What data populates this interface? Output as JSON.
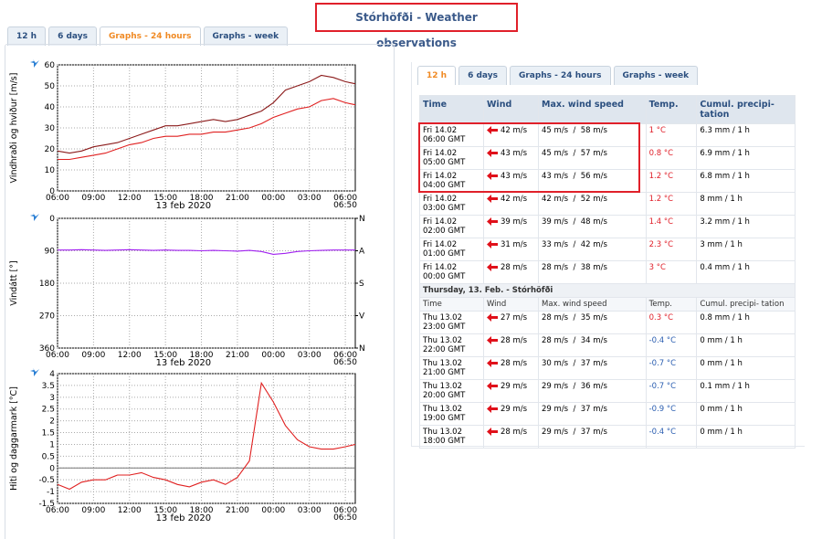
{
  "title": "Stórhöfði - Weather observations",
  "tabs": [
    {
      "label": "12 h"
    },
    {
      "label": "6 days"
    },
    {
      "label": "Graphs - 24 hours",
      "active": true
    },
    {
      "label": "Graphs - week"
    }
  ],
  "charts": [
    {
      "ylabel": "Vindhraði og hviður [m/s]",
      "xlim": [
        0,
        24.83
      ],
      "xticks": [
        {
          "value": 0,
          "label": "06:00"
        },
        {
          "value": 3,
          "label": "09:00"
        },
        {
          "value": 6,
          "label": "12:00"
        },
        {
          "value": 9,
          "label": "15:00"
        },
        {
          "value": 12,
          "label": "18:00"
        },
        {
          "value": 15,
          "label": "21:00"
        },
        {
          "value": 18,
          "label": "00:00"
        },
        {
          "value": 21,
          "label": "03:00"
        },
        {
          "value": 24,
          "label": "06:00"
        }
      ],
      "x_end_label": "06:50",
      "date_label": "13 feb 2020",
      "ylim": [
        0,
        60
      ],
      "yticks": [
        0,
        10,
        20,
        30,
        40,
        50,
        60
      ],
      "x": [
        0,
        1,
        2,
        3,
        4,
        5,
        6,
        7,
        8,
        9,
        10,
        11,
        12,
        13,
        14,
        15,
        16,
        17,
        18,
        19,
        20,
        21,
        22,
        23,
        24,
        24.83
      ],
      "series": [
        {
          "color": "#8b1a1a",
          "values": [
            19,
            18,
            19,
            21,
            22,
            23,
            25,
            27,
            29,
            31,
            31,
            32,
            33,
            34,
            33,
            34,
            36,
            38,
            42,
            48,
            50,
            52,
            55,
            54,
            52,
            51
          ]
        },
        {
          "color": "#e02020",
          "values": [
            15,
            15,
            16,
            17,
            18,
            20,
            22,
            23,
            25,
            26,
            26,
            27,
            27,
            28,
            28,
            29,
            30,
            32,
            35,
            37,
            39,
            40,
            43,
            44,
            42,
            41
          ]
        }
      ]
    },
    {
      "ylabel": "Vindátt [°]",
      "xlim": [
        0,
        24.83
      ],
      "xticks": [
        {
          "value": 0,
          "label": "06:00"
        },
        {
          "value": 3,
          "label": "09:00"
        },
        {
          "value": 6,
          "label": "12:00"
        },
        {
          "value": 9,
          "label": "15:00"
        },
        {
          "value": 12,
          "label": "18:00"
        },
        {
          "value": 15,
          "label": "21:00"
        },
        {
          "value": 18,
          "label": "00:00"
        },
        {
          "value": 21,
          "label": "03:00"
        },
        {
          "value": 24,
          "label": "06:00"
        }
      ],
      "x_end_label": "06:50",
      "date_label": "13 feb 2020",
      "ylim": [
        0,
        360
      ],
      "inverted": true,
      "yticks": [
        0,
        90,
        180,
        270,
        360
      ],
      "y2ticks": [
        {
          "value": 0,
          "label": "N"
        },
        {
          "value": 90,
          "label": "A"
        },
        {
          "value": 180,
          "label": "S"
        },
        {
          "value": 270,
          "label": "V"
        },
        {
          "value": 360,
          "label": "N"
        }
      ],
      "x": [
        0,
        1,
        2,
        3,
        4,
        5,
        6,
        7,
        8,
        9,
        10,
        11,
        12,
        13,
        14,
        15,
        16,
        17,
        18,
        19,
        20,
        21,
        22,
        23,
        24,
        24.83
      ],
      "series": [
        {
          "color": "#a020f0",
          "values": [
            88,
            88,
            87,
            88,
            89,
            88,
            87,
            88,
            89,
            88,
            89,
            89,
            90,
            89,
            90,
            91,
            89,
            92,
            100,
            97,
            92,
            90,
            89,
            88,
            88,
            88
          ]
        }
      ]
    },
    {
      "ylabel": "Hiti og daggarmark [°C]",
      "xlim": [
        0,
        24.83
      ],
      "xticks": [
        {
          "value": 0,
          "label": "06:00"
        },
        {
          "value": 3,
          "label": "09:00"
        },
        {
          "value": 6,
          "label": "12:00"
        },
        {
          "value": 9,
          "label": "15:00"
        },
        {
          "value": 12,
          "label": "18:00"
        },
        {
          "value": 15,
          "label": "21:00"
        },
        {
          "value": 18,
          "label": "00:00"
        },
        {
          "value": 21,
          "label": "03:00"
        },
        {
          "value": 24,
          "label": "06:00"
        }
      ],
      "x_end_label": "06:50",
      "date_label": "13 feb 2020",
      "ylim": [
        -1.5,
        4
      ],
      "yticks": [
        -1.5,
        -1,
        -0.5,
        0,
        0.5,
        1,
        1.5,
        2,
        2.5,
        3,
        3.5,
        4
      ],
      "zero_line": true,
      "x": [
        0,
        1,
        2,
        3,
        4,
        5,
        6,
        7,
        8,
        9,
        10,
        11,
        12,
        13,
        14,
        15,
        16,
        17,
        18,
        19,
        20,
        21,
        22,
        23,
        24,
        24.83
      ],
      "series": [
        {
          "color": "#e02020",
          "values": [
            -0.7,
            -0.9,
            -0.6,
            -0.5,
            -0.5,
            -0.3,
            -0.3,
            -0.2,
            -0.4,
            -0.5,
            -0.7,
            -0.8,
            -0.6,
            -0.5,
            -0.7,
            -0.4,
            0.3,
            3.6,
            2.8,
            1.8,
            1.2,
            0.9,
            0.8,
            0.8,
            0.9,
            1.0
          ]
        }
      ]
    }
  ],
  "table_tabs": [
    {
      "label": "12 h",
      "active": true
    },
    {
      "label": "6 days"
    },
    {
      "label": "Graphs - 24 hours"
    },
    {
      "label": "Graphs - week"
    }
  ],
  "table": {
    "headers": [
      "Time",
      "Wind",
      "Max. wind speed",
      "Temp.",
      "Cumul. precipi-tation"
    ],
    "rows": [
      [
        "Fri 14.02",
        "06:00 GMT",
        "42 m/s",
        "45 m/s  /  58 m/s",
        "1 °C",
        "6.3 mm / 1 h"
      ],
      [
        "Fri 14.02",
        "05:00 GMT",
        "43 m/s",
        "45 m/s  /  57 m/s",
        "0.8 °C",
        "6.9 mm / 1 h"
      ],
      [
        "Fri 14.02",
        "04:00 GMT",
        "43 m/s",
        "43 m/s  /  56 m/s",
        "1.2 °C",
        "6.8 mm / 1 h"
      ],
      [
        "Fri 14.02",
        "03:00 GMT",
        "42 m/s",
        "42 m/s  /  52 m/s",
        "1.2 °C",
        "8 mm / 1 h"
      ],
      [
        "Fri 14.02",
        "02:00 GMT",
        "39 m/s",
        "39 m/s  /  48 m/s",
        "1.4 °C",
        "3.2 mm / 1 h"
      ],
      [
        "Fri 14.02",
        "01:00 GMT",
        "31 m/s",
        "33 m/s  /  42 m/s",
        "2.3 °C",
        "3 mm / 1 h"
      ],
      [
        "Fri 14.02",
        "00:00 GMT",
        "28 m/s",
        "28 m/s  /  38 m/s",
        "3 °C",
        "0.4 mm / 1 h"
      ]
    ],
    "section": "Thursday, 13. Feb. - Stórhöfði",
    "section_headers": [
      "Time",
      "Wind",
      "Max. wind speed",
      "Temp.",
      "Cumul. precipi- tation"
    ],
    "section_rows": [
      [
        "Thu 13.02",
        "23:00 GMT",
        "27 m/s",
        "28 m/s  /  35 m/s",
        "0.3 °C",
        "0.8 mm / 1 h"
      ],
      [
        "Thu 13.02",
        "22:00 GMT",
        "28 m/s",
        "28 m/s  /  34 m/s",
        "-0.4 °C",
        "0 mm / 1 h"
      ],
      [
        "Thu 13.02",
        "21:00 GMT",
        "28 m/s",
        "30 m/s  /  37 m/s",
        "-0.7 °C",
        "0 mm / 1 h"
      ],
      [
        "Thu 13.02",
        "20:00 GMT",
        "29 m/s",
        "29 m/s  /  36 m/s",
        "-0.7 °C",
        "0.1 mm / 1 h"
      ],
      [
        "Thu 13.02",
        "19:00 GMT",
        "29 m/s",
        "29 m/s  /  37 m/s",
        "-0.9 °C",
        "0 mm / 1 h"
      ],
      [
        "Thu 13.02",
        "18:00 GMT",
        "28 m/s",
        "29 m/s  /  37 m/s",
        "-0.4 °C",
        "0 mm / 1 h"
      ]
    ]
  }
}
